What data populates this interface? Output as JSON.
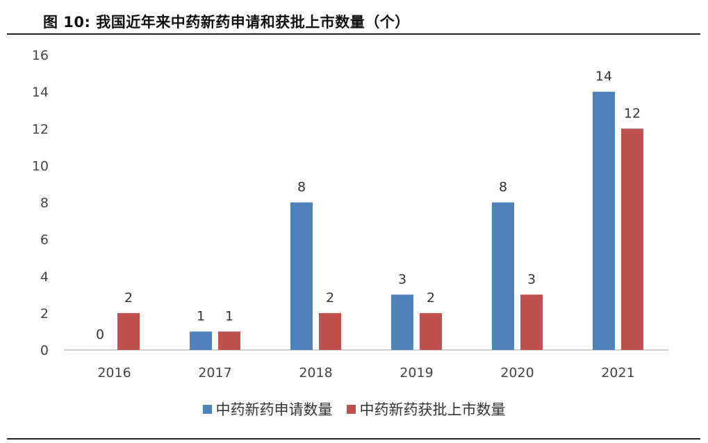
{
  "title": "图 10: 我国近年来中药新药申请和获批上市数量（个）",
  "chart_data": {
    "type": "bar",
    "categories": [
      "2016",
      "2017",
      "2018",
      "2019",
      "2020",
      "2021"
    ],
    "series": [
      {
        "name": "中药新药申请数量",
        "values": [
          0,
          1,
          8,
          3,
          8,
          14
        ],
        "color": "#4F81BD"
      },
      {
        "name": "中药新药获批上市数量",
        "values": [
          2,
          1,
          2,
          2,
          3,
          12
        ],
        "color": "#C0504D"
      }
    ],
    "yticks": [
      "0",
      "2",
      "4",
      "6",
      "8",
      "10",
      "12",
      "14",
      "16"
    ],
    "ylim": [
      0,
      16
    ],
    "data_labels": true,
    "grid": false,
    "legend_position": "bottom"
  }
}
